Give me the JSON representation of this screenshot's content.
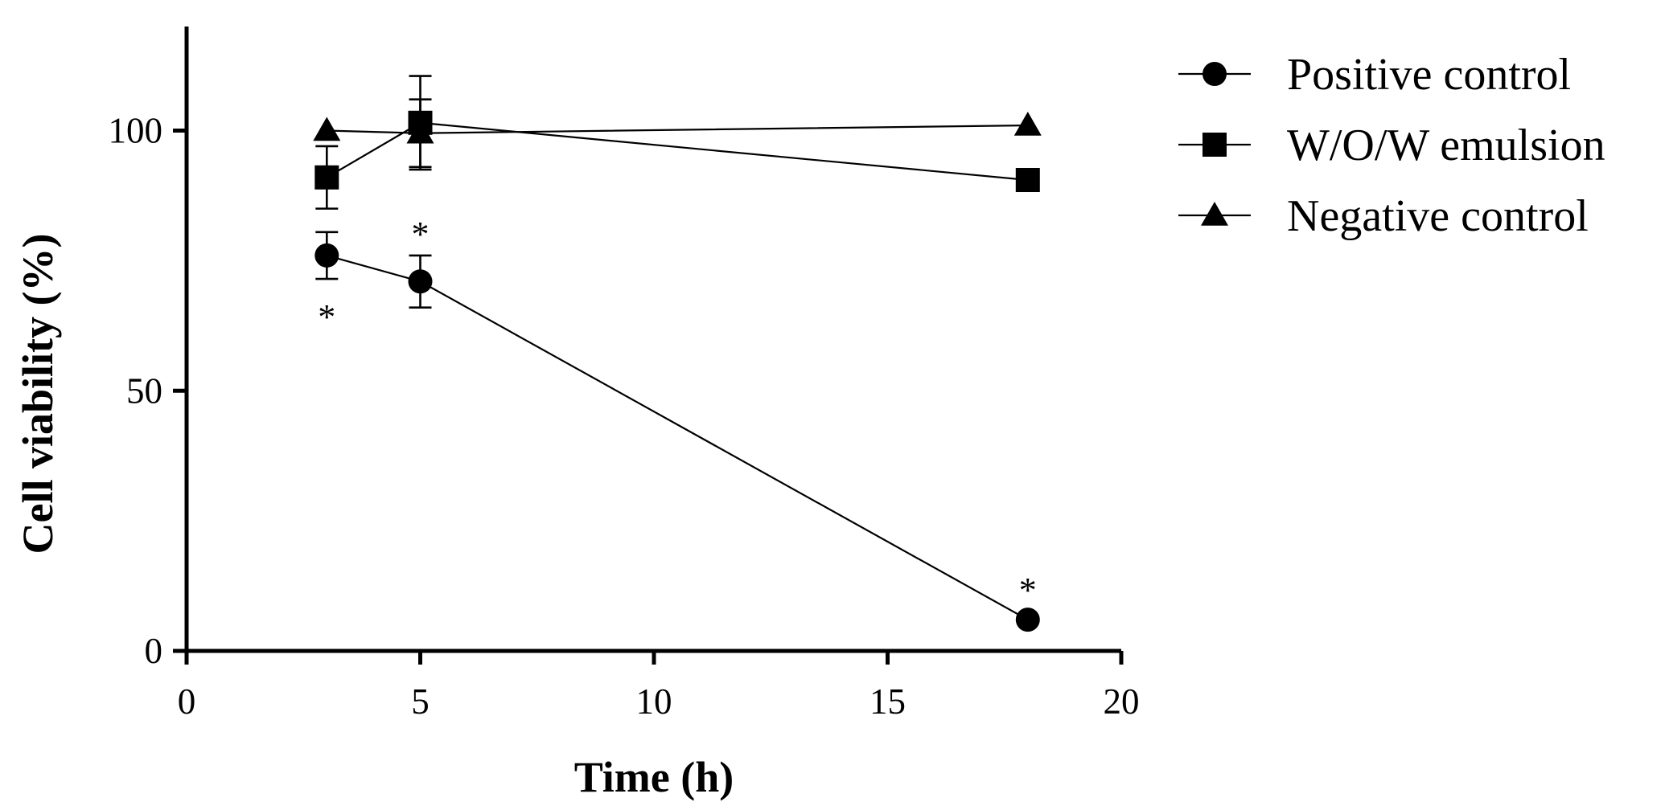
{
  "chart_data": {
    "type": "line",
    "xlabel": "Time (h)",
    "ylabel": "Cell viability (%)",
    "xlim": [
      0,
      20
    ],
    "ylim": [
      0,
      120
    ],
    "xticks": [
      0,
      5,
      10,
      15,
      20
    ],
    "yticks": [
      0,
      50,
      100
    ],
    "grid": false,
    "legend_position": "top-right",
    "series": [
      {
        "name": "Positive control",
        "marker": "circle",
        "x": [
          3,
          5,
          18
        ],
        "y": [
          76,
          71,
          6
        ],
        "error": [
          4.5,
          5,
          0
        ]
      },
      {
        "name": "W/O/W emulsion",
        "marker": "square",
        "x": [
          3,
          5,
          18
        ],
        "y": [
          91,
          101.5,
          90.5
        ],
        "error": [
          6,
          9,
          0
        ]
      },
      {
        "name": "Negative control",
        "marker": "triangle",
        "x": [
          3,
          5,
          18
        ],
        "y": [
          100,
          99.5,
          101
        ],
        "error": [
          0,
          6.5,
          0
        ]
      }
    ],
    "annotations": [
      {
        "text": "*",
        "x": 3,
        "position": "below"
      },
      {
        "text": "*",
        "x": 5,
        "position": "above"
      },
      {
        "text": "*",
        "x": 18,
        "position": "above"
      }
    ]
  },
  "colors": {
    "ink": "#000000",
    "background": "#ffffff"
  }
}
